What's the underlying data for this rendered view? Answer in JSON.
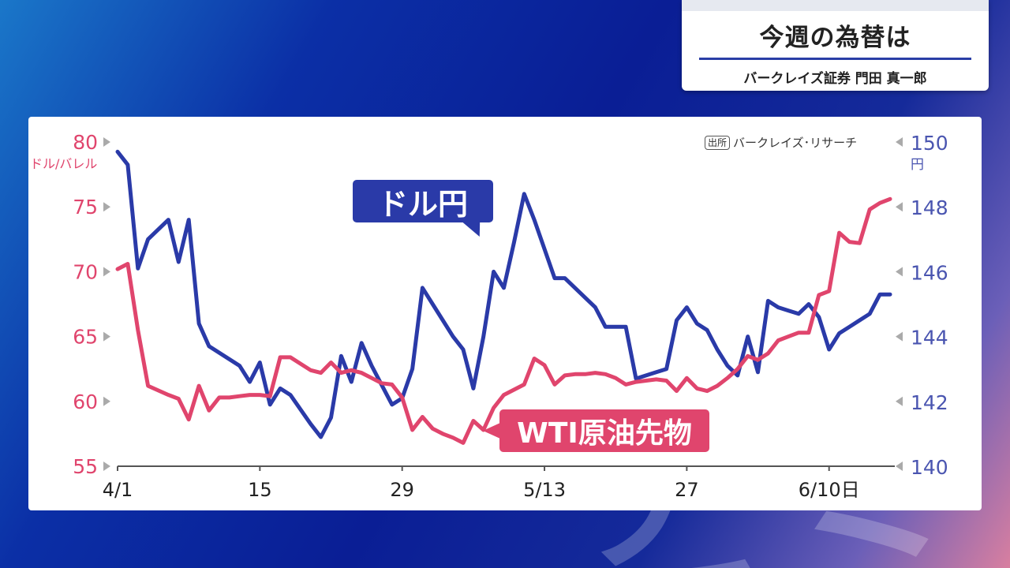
{
  "title_box": {
    "title": "今週の為替は",
    "subtitle": "バークレイズ証券 門田 真一郎"
  },
  "source": {
    "tag": "出所",
    "text": "バークレイズ･リサーチ"
  },
  "labels": {
    "usd_jpy": "ドル円",
    "wti": "WTI原油先物"
  },
  "colors": {
    "usd_jpy": "#2a3aa8",
    "wti": "#e0456d",
    "axis_left": "#e0456d",
    "axis_right": "#4a55b0"
  },
  "chart_data": {
    "type": "line",
    "x_ticks": [
      "4/1",
      "15",
      "29",
      "5/13",
      "27",
      "6/10日"
    ],
    "left_axis": {
      "unit": "ドル/バレル",
      "ylim": [
        55,
        80
      ],
      "ticks": [
        55,
        60,
        65,
        70,
        75,
        80
      ]
    },
    "right_axis": {
      "unit": "円",
      "ylim": [
        140,
        150
      ],
      "ticks": [
        140,
        142,
        144,
        146,
        148,
        150
      ]
    },
    "x_range": [
      0,
      76
    ],
    "series": [
      {
        "name": "ドル円",
        "axis": "right",
        "x": [
          0,
          1,
          2,
          3,
          5,
          6,
          7,
          8,
          9,
          10,
          11,
          12,
          13,
          14,
          15,
          16,
          17,
          19,
          20,
          21,
          22,
          23,
          24,
          25,
          26,
          27,
          28,
          29,
          30,
          31,
          32,
          33,
          34,
          35,
          36,
          37,
          38,
          39,
          40,
          41,
          42,
          43,
          44,
          45,
          46,
          47,
          48,
          49,
          50,
          51,
          52,
          53,
          54,
          55,
          56,
          57,
          58,
          59,
          60,
          61,
          62,
          63,
          64,
          65,
          66,
          67,
          68,
          69,
          70,
          71,
          72,
          73,
          74,
          75,
          76
        ],
        "values": [
          149.7,
          149.3,
          146.1,
          147.0,
          147.6,
          146.3,
          147.6,
          144.4,
          143.7,
          143.5,
          143.3,
          143.1,
          142.6,
          143.2,
          141.9,
          142.4,
          142.2,
          141.3,
          140.9,
          141.5,
          143.4,
          142.6,
          143.8,
          143.1,
          142.5,
          141.9,
          142.1,
          143.0,
          145.5,
          145.0,
          144.5,
          144.0,
          143.6,
          142.4,
          144.0,
          146.0,
          145.5,
          146.9,
          148.4,
          147.6,
          146.7,
          145.8,
          145.8,
          145.5,
          145.2,
          144.9,
          144.3,
          144.3,
          144.3,
          142.7,
          142.8,
          142.9,
          143.0,
          144.5,
          144.9,
          144.4,
          144.2,
          143.6,
          143.1,
          142.8,
          144.0,
          142.9,
          145.1,
          144.9,
          144.8,
          144.7,
          145.0,
          144.6,
          143.6,
          144.1,
          144.3,
          144.5,
          144.7,
          145.3,
          145.3
        ]
      },
      {
        "name": "WTI原油先物",
        "axis": "left",
        "x": [
          0,
          1,
          2,
          3,
          5,
          6,
          7,
          8,
          9,
          10,
          11,
          12,
          13,
          14,
          15,
          16,
          17,
          19,
          20,
          21,
          22,
          23,
          24,
          25,
          26,
          27,
          28,
          29,
          30,
          31,
          32,
          33,
          34,
          35,
          36,
          37,
          38,
          39,
          40,
          41,
          42,
          43,
          44,
          45,
          46,
          47,
          48,
          49,
          50,
          51,
          52,
          53,
          54,
          55,
          56,
          57,
          58,
          59,
          60,
          61,
          62,
          63,
          64,
          65,
          66,
          67,
          68,
          69,
          70,
          71,
          72,
          73,
          74,
          75,
          76
        ],
        "values": [
          70.2,
          70.6,
          65.5,
          61.2,
          60.5,
          60.2,
          58.6,
          61.2,
          59.3,
          60.3,
          60.3,
          60.4,
          60.5,
          60.5,
          60.4,
          63.4,
          63.4,
          62.4,
          62.2,
          63.0,
          62.2,
          62.4,
          62.2,
          61.8,
          61.4,
          61.3,
          60.3,
          57.8,
          58.8,
          57.9,
          57.5,
          57.2,
          56.8,
          58.5,
          57.8,
          59.5,
          60.5,
          60.9,
          61.3,
          63.3,
          62.8,
          61.3,
          62.0,
          62.1,
          62.1,
          62.2,
          62.1,
          61.8,
          61.3,
          61.5,
          61.6,
          61.7,
          61.6,
          60.8,
          61.8,
          61.0,
          60.8,
          61.2,
          61.8,
          62.5,
          63.5,
          63.2,
          63.7,
          64.7,
          65.0,
          65.3,
          65.3,
          68.2,
          68.5,
          73.0,
          72.3,
          72.2,
          74.8,
          75.3,
          75.6
        ]
      }
    ]
  }
}
